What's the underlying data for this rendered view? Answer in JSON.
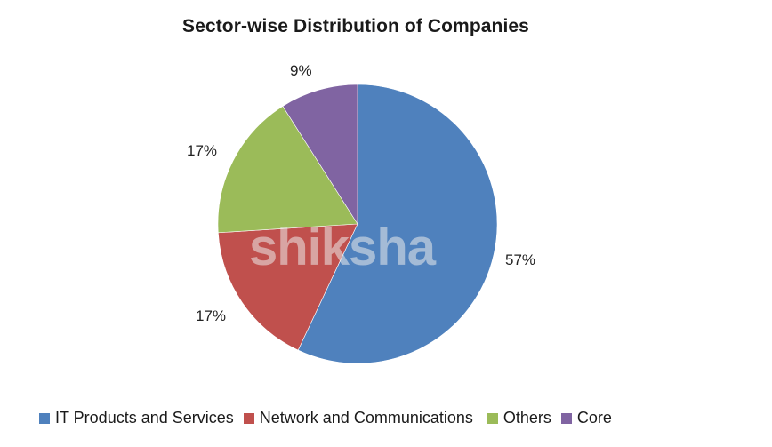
{
  "chart_data": {
    "type": "pie",
    "title": "Sector-wise Distribution of Companies",
    "categories": [
      "IT Products and Services",
      "Network and Communications",
      "Others",
      "Core"
    ],
    "values": [
      57,
      17,
      17,
      9
    ],
    "labels": [
      "57%",
      "17%",
      "17%",
      "9%"
    ],
    "colors": [
      "#4f81bd",
      "#c0504d",
      "#9bbb59",
      "#8064a2"
    ],
    "start_angle_deg": 0,
    "direction": "clockwise",
    "legend_position": "bottom",
    "watermark": "shiksha"
  },
  "title": "Sector-wise Distribution of Companies",
  "legend": [
    {
      "label": "IT Products and Services",
      "color": "#4f81bd"
    },
    {
      "label": "Network and Communications",
      "color": "#c0504d"
    },
    {
      "label": "Others",
      "color": "#9bbb59"
    },
    {
      "label": "Core",
      "color": "#8064a2"
    }
  ],
  "data_labels": {
    "it": "57%",
    "network": "17%",
    "others": "17%",
    "core": "9%"
  },
  "watermark": "shiksha"
}
